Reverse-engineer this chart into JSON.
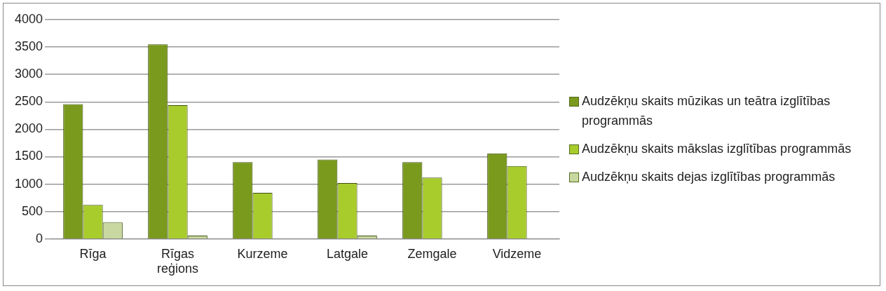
{
  "chart_data": {
    "type": "bar",
    "categories": [
      "Rīga",
      "Rīgas reģions",
      "Kurzeme",
      "Latgale",
      "Zemgale",
      "Vidzeme"
    ],
    "series": [
      {
        "name": "Audzēkņu skaits mūzikas un teātra izglītības programmās",
        "color": "#7a9a1e",
        "values": [
          2460,
          3550,
          1400,
          1450,
          1400,
          1560
        ]
      },
      {
        "name": "Audzēkņu skaits mākslas izglītības programmās",
        "color": "#a8cc2c",
        "values": [
          620,
          2440,
          840,
          1020,
          1120,
          1330
        ]
      },
      {
        "name": "Audzēkņu skaits dejas izglītības programmās",
        "color": "#c8d8a0",
        "values": [
          300,
          60,
          10,
          60,
          null,
          null
        ]
      }
    ],
    "ylim": [
      0,
      4000
    ],
    "yticks": [
      0,
      500,
      1000,
      1500,
      2000,
      2500,
      3000,
      3500,
      4000
    ],
    "grid": "y",
    "legend": "right"
  }
}
